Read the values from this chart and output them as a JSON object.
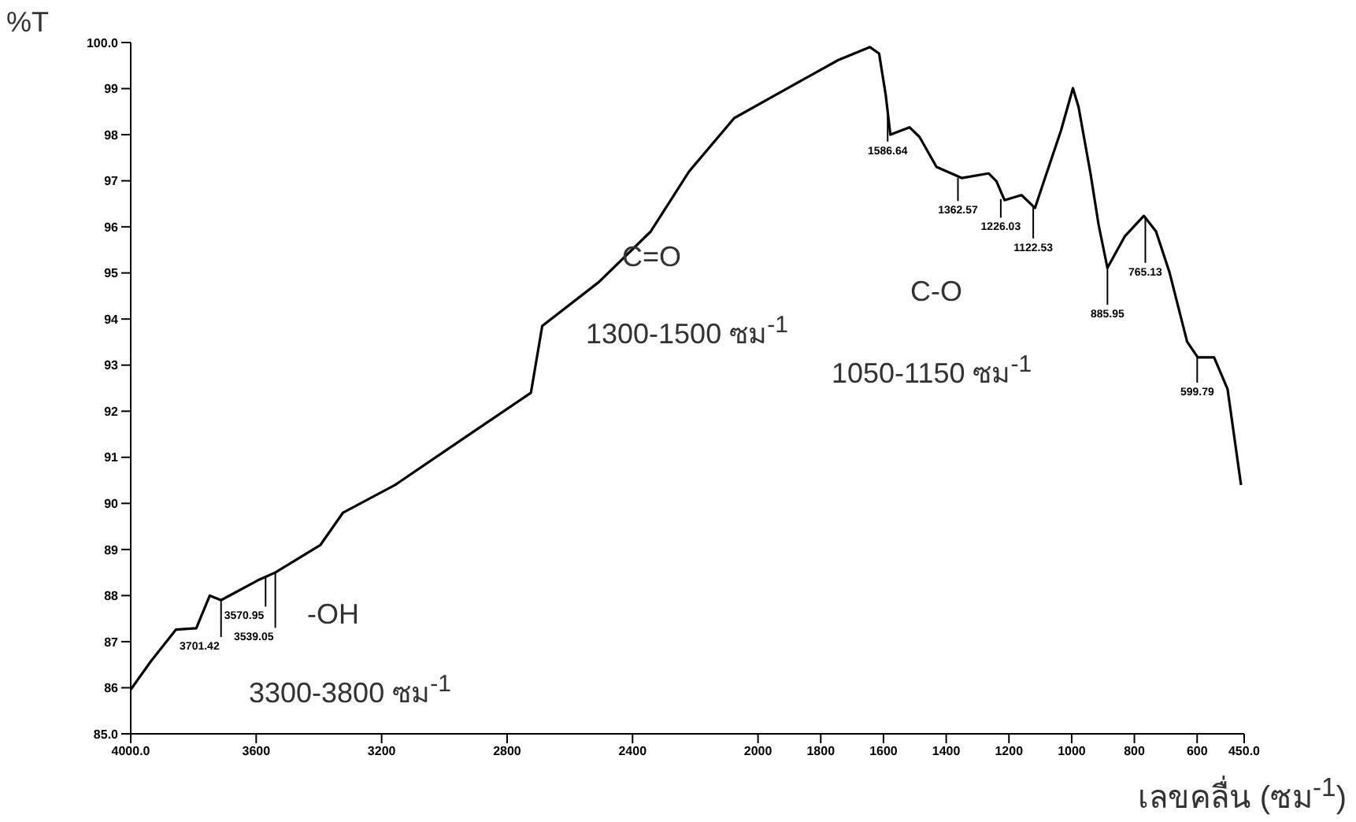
{
  "chart_data": {
    "type": "line",
    "xlabel": "เลขคลื่น (ซม$^{-1}$)",
    "ylabel": "%T",
    "series": [
      {
        "color": "#000000",
        "x": [
          4000,
          3935,
          3856,
          3791,
          3748,
          3712,
          3589,
          3539,
          3467,
          3395,
          3323,
          3157,
          2941,
          2724,
          2688,
          2508,
          2342,
          2220,
          2076,
          1924,
          1744,
          1643,
          1614,
          1593,
          1578,
          1517,
          1485,
          1431,
          1351,
          1265,
          1240,
          1214,
          1160,
          1117,
          1085,
          1034,
          996,
          978,
          940,
          914,
          886,
          830,
          770,
          731,
          688,
          632,
          598,
          546,
          503,
          460
        ],
        "values": [
          85.96,
          86.58,
          87.26,
          87.29,
          88.0,
          87.9,
          88.35,
          88.5,
          88.8,
          89.1,
          89.8,
          90.4,
          91.4,
          92.4,
          93.85,
          94.8,
          95.9,
          97.2,
          98.36,
          98.94,
          99.62,
          99.9,
          99.76,
          98.87,
          98.0,
          98.16,
          97.95,
          97.3,
          97.06,
          97.16,
          96.99,
          96.58,
          96.69,
          96.41,
          97.06,
          98.09,
          99.01,
          98.6,
          97.16,
          96.04,
          95.11,
          95.8,
          96.24,
          95.9,
          95.01,
          93.51,
          93.17,
          93.17,
          92.48,
          90.4
        ]
      }
    ],
    "xlim": [
      4000,
      450
    ],
    "xticks": [
      {
        "value": 4000,
        "label": "4000.0"
      },
      3600,
      3200,
      2800,
      2400,
      2000,
      1800,
      1600,
      1400,
      1200,
      1000,
      800,
      600,
      {
        "value": 450,
        "label": "450.0"
      }
    ],
    "ylim": [
      85,
      100
    ],
    "yticks": [
      {
        "value": 85,
        "label": "85.0"
      },
      86,
      87,
      88,
      89,
      90,
      91,
      92,
      93,
      94,
      95,
      96,
      97,
      98,
      99,
      {
        "value": 100,
        "label": "100.0"
      }
    ],
    "annotations": [
      "-OH",
      "3300-3800 ซม$^{-1}$",
      "C=O",
      "1300-1500 ซม$^{-1}$",
      "C-O",
      "1050-1150 ซม$^{-1}$",
      {
        "text": "3701.42",
        "x": 3712,
        "y": 87.9
      },
      {
        "text": "3570.95",
        "x": 3570,
        "y": 88.41
      },
      {
        "text": "3539.05",
        "x": 3539,
        "y": 88.5
      },
      {
        "text": "1586.64",
        "x": 1586.64,
        "y": 98.4
      },
      {
        "text": "1362.57",
        "x": 1362.57,
        "y": 97.06
      },
      {
        "text": "1226.03",
        "x": 1226.03,
        "y": 96.6
      },
      {
        "text": "1122.53",
        "x": 1122.53,
        "y": 96.45
      },
      {
        "text": "885.95",
        "x": 885.95,
        "y": 95.11
      },
      {
        "text": "765.13",
        "x": 765.13,
        "y": 96.22
      },
      {
        "text": "599.79",
        "x": 599.79,
        "y": 93.17
      }
    ]
  }
}
